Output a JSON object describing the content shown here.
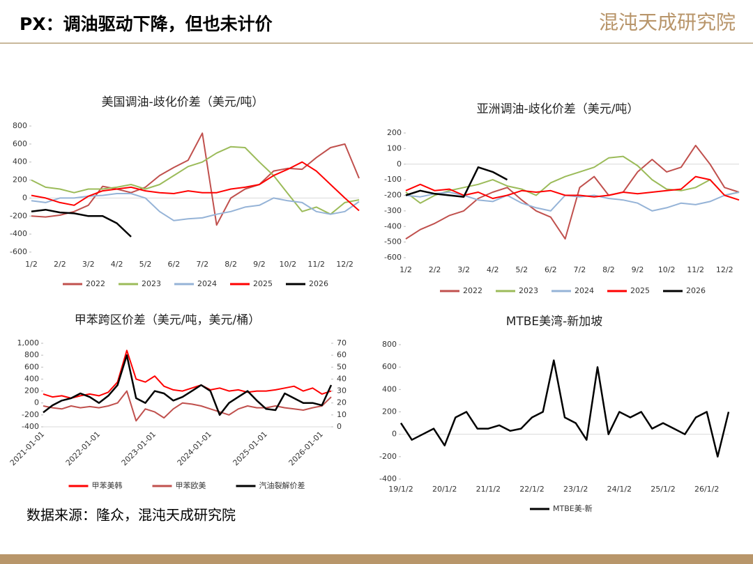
{
  "header": {
    "title": "PX：调油驱动下降，但也未计价",
    "logo": "混沌天成研究院"
  },
  "footer": {
    "source": "数据来源：隆众，混沌天成研究院"
  },
  "chart_data": [
    {
      "type": "line",
      "title": "美国调油-歧化价差（美元/吨）",
      "legend": "bottom",
      "categories": [
        "1/2",
        null,
        "2/2",
        null,
        "3/2",
        null,
        "4/2",
        null,
        "5/2",
        null,
        "6/2",
        null,
        "7/2",
        null,
        "8/2",
        null,
        "9/2",
        null,
        "10/2",
        null,
        "11/2",
        null,
        "12/2",
        null
      ],
      "ylim": [
        -600,
        800
      ],
      "yticks": [
        -600,
        -400,
        -200,
        0,
        200,
        400,
        600,
        800
      ],
      "series": [
        {
          "name": "2022",
          "color": "#c0504d",
          "values": [
            -200,
            -210,
            -190,
            -150,
            -80,
            130,
            100,
            60,
            120,
            250,
            340,
            420,
            720,
            -300,
            0,
            100,
            150,
            300,
            330,
            320,
            450,
            560,
            600,
            220
          ]
        },
        {
          "name": "2023",
          "color": "#9bbb59",
          "values": [
            200,
            120,
            100,
            60,
            100,
            100,
            120,
            150,
            100,
            150,
            250,
            350,
            400,
            500,
            570,
            560,
            400,
            250,
            50,
            -150,
            -100,
            -180,
            -50,
            -20
          ]
        },
        {
          "name": "2024",
          "color": "#95b3d7",
          "values": [
            -30,
            -50,
            0,
            0,
            20,
            30,
            50,
            50,
            0,
            -150,
            -250,
            -230,
            -220,
            -180,
            -150,
            -100,
            -80,
            0,
            -30,
            -50,
            -150,
            -180,
            -150,
            -40
          ]
        },
        {
          "name": "2025",
          "color": "#ff0000",
          "values": [
            30,
            0,
            -50,
            -80,
            20,
            80,
            100,
            120,
            80,
            60,
            50,
            80,
            60,
            60,
            100,
            120,
            150,
            250,
            320,
            400,
            300,
            150,
            0,
            -140
          ]
        },
        {
          "name": "2026",
          "color": "#000000",
          "values": [
            -150,
            -130,
            -160,
            -170,
            -200,
            -200,
            -280,
            -430,
            null,
            null,
            null,
            null,
            null,
            null,
            null,
            null,
            null,
            null,
            null,
            null,
            null,
            null,
            null,
            null
          ]
        }
      ]
    },
    {
      "type": "line",
      "title": "亚洲调油-歧化价差（美元/吨）",
      "legend": "bottom",
      "categories": [
        "1/2",
        null,
        "2/2",
        null,
        "3/2",
        null,
        "4/2",
        null,
        "5/2",
        null,
        "6/2",
        null,
        "7/2",
        null,
        "8/2",
        null,
        "9/2",
        null,
        "10/2",
        null,
        "11/2",
        null,
        "12/2",
        null
      ],
      "ylim": [
        -600,
        200
      ],
      "yticks": [
        -600,
        -500,
        -400,
        -300,
        -200,
        -100,
        0,
        100,
        200
      ],
      "series": [
        {
          "name": "2022",
          "color": "#c0504d",
          "values": [
            -480,
            -420,
            -380,
            -330,
            -300,
            -220,
            -180,
            -150,
            -230,
            -300,
            -340,
            -480,
            -150,
            -80,
            -200,
            -180,
            -50,
            30,
            -50,
            -20,
            120,
            0,
            -150,
            -180
          ]
        },
        {
          "name": "2023",
          "color": "#9bbb59",
          "values": [
            -180,
            -250,
            -200,
            -170,
            -150,
            -130,
            -100,
            -140,
            -160,
            -200,
            -120,
            -80,
            -50,
            -20,
            40,
            50,
            -10,
            -100,
            -160,
            -170,
            -150,
            -100,
            -200,
            -180
          ]
        },
        {
          "name": "2024",
          "color": "#95b3d7",
          "values": [
            -200,
            -210,
            -190,
            -180,
            -200,
            -230,
            -240,
            -200,
            -250,
            -280,
            -300,
            -200,
            -210,
            -200,
            -220,
            -230,
            -250,
            -300,
            -280,
            -250,
            -260,
            -240,
            -200,
            -180
          ]
        },
        {
          "name": "2025",
          "color": "#ff0000",
          "values": [
            -170,
            -130,
            -170,
            -160,
            -200,
            -180,
            -220,
            -200,
            -170,
            -180,
            -170,
            -200,
            -200,
            -210,
            -200,
            -180,
            -190,
            -180,
            -170,
            -160,
            -80,
            -100,
            -200,
            -230
          ]
        },
        {
          "name": "2026",
          "color": "#000000",
          "values": [
            -200,
            -170,
            -190,
            -200,
            -210,
            -20,
            -50,
            -100,
            null,
            null,
            null,
            null,
            null,
            null,
            null,
            null,
            null,
            null,
            null,
            null,
            null,
            null,
            null,
            null
          ]
        }
      ]
    },
    {
      "type": "line",
      "title": "甲苯跨区价差（美元/吨，美元/桶）",
      "legend": "bottom",
      "categories": [
        "2021-01-01",
        null,
        null,
        null,
        null,
        null,
        "2022-01-01",
        null,
        null,
        null,
        null,
        null,
        "2023-01-01",
        null,
        null,
        null,
        null,
        null,
        "2024-01-01",
        null,
        null,
        null,
        null,
        null,
        "2025-01-01",
        null,
        null,
        null,
        null,
        null,
        "2026-01-01",
        null
      ],
      "ylim": [
        -400,
        1000
      ],
      "yticks": [
        -400,
        -200,
        0,
        200,
        400,
        600,
        800,
        {
          "value": 1000,
          "label": "1,000"
        }
      ],
      "y2lim": [
        0,
        70
      ],
      "y2ticks": [
        0,
        10,
        20,
        30,
        40,
        50,
        60,
        70
      ],
      "series": [
        {
          "name": "甲苯美韩",
          "color": "#ff0000",
          "values": [
            150,
            100,
            120,
            80,
            120,
            150,
            120,
            180,
            350,
            880,
            400,
            350,
            450,
            280,
            220,
            200,
            250,
            300,
            220,
            250,
            200,
            220,
            180,
            200,
            200,
            220,
            250,
            280,
            200,
            250,
            150,
            200
          ]
        },
        {
          "name": "甲苯欧美",
          "color": "#c0504d",
          "values": [
            -50,
            -80,
            -100,
            -50,
            -80,
            -60,
            -80,
            -50,
            0,
            200,
            -300,
            -100,
            -150,
            -250,
            -100,
            0,
            -20,
            -50,
            -100,
            -150,
            -200,
            -100,
            -50,
            -80,
            -80,
            -50,
            -80,
            -100,
            -120,
            -80,
            -50,
            100
          ]
        },
        {
          "name": "汽油裂解价差",
          "color": "#000000",
          "axis": "y2",
          "values": [
            12,
            18,
            22,
            24,
            28,
            25,
            20,
            26,
            35,
            60,
            24,
            20,
            30,
            28,
            22,
            25,
            30,
            35,
            30,
            10,
            20,
            25,
            30,
            22,
            15,
            14,
            28,
            24,
            20,
            20,
            18,
            35
          ]
        }
      ]
    },
    {
      "type": "line",
      "title": "MTBE美湾-新加坡",
      "legend": "bottom",
      "categories": [
        "19/1/2",
        null,
        null,
        null,
        "20/1/2",
        null,
        null,
        null,
        "21/1/2",
        null,
        null,
        null,
        "22/1/2",
        null,
        null,
        null,
        "23/1/2",
        null,
        null,
        null,
        "24/1/2",
        null,
        null,
        null,
        "25/1/2",
        null,
        null,
        null,
        "26/1/2",
        null,
        null
      ],
      "ylim": [
        -400,
        800
      ],
      "yticks": [
        -400,
        -200,
        0,
        200,
        400,
        600,
        800
      ],
      "series": [
        {
          "name": "MTBE美-新",
          "color": "#000000",
          "values": [
            100,
            -50,
            0,
            50,
            -100,
            150,
            200,
            50,
            50,
            80,
            30,
            50,
            150,
            200,
            660,
            150,
            100,
            -50,
            600,
            0,
            200,
            150,
            200,
            50,
            100,
            50,
            0,
            150,
            200,
            -200,
            200
          ]
        }
      ]
    }
  ]
}
